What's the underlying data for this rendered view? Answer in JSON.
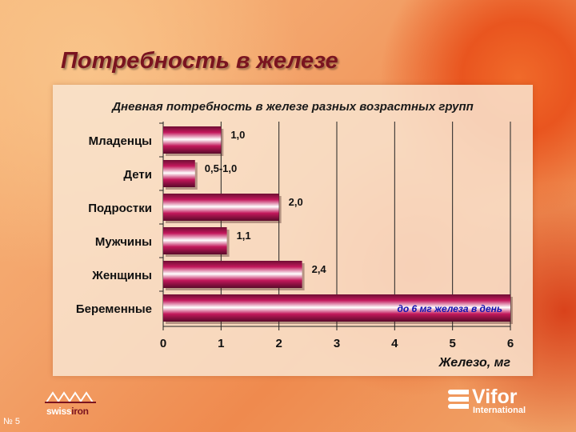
{
  "slide": {
    "title": "Потребность в железе",
    "number": "№ 5"
  },
  "logos": {
    "left": {
      "prefix": "swiss",
      "accent": "iron"
    },
    "right": {
      "name": "Vifor",
      "sub": "International"
    }
  },
  "colors": {
    "bar_dark": "#6e0d33",
    "bar_mid": "#c2185b",
    "bar_light": "#ffffff",
    "title": "#7a1420",
    "label_blue": "#1010b0"
  },
  "chart_data": {
    "type": "bar",
    "orientation": "horizontal",
    "title": "Дневная потребность в железе разных возрастных групп",
    "xlabel": "Железо, мг",
    "ylabel": "",
    "xlim": [
      0,
      6
    ],
    "ticks": [
      "0",
      "1",
      "2",
      "3",
      "4",
      "5",
      "6"
    ],
    "grid": "vertical",
    "categories": [
      "Младенцы",
      "Дети",
      "Подростки",
      "Мужчины",
      "Женщины",
      "Беременные"
    ],
    "values": [
      1.0,
      0.55,
      2.0,
      1.1,
      2.4,
      6.0
    ],
    "labels": [
      "1,0",
      "0,5-1,0",
      "2,0",
      "1,1",
      "2,4",
      "до 6 мг железа в день"
    ]
  }
}
